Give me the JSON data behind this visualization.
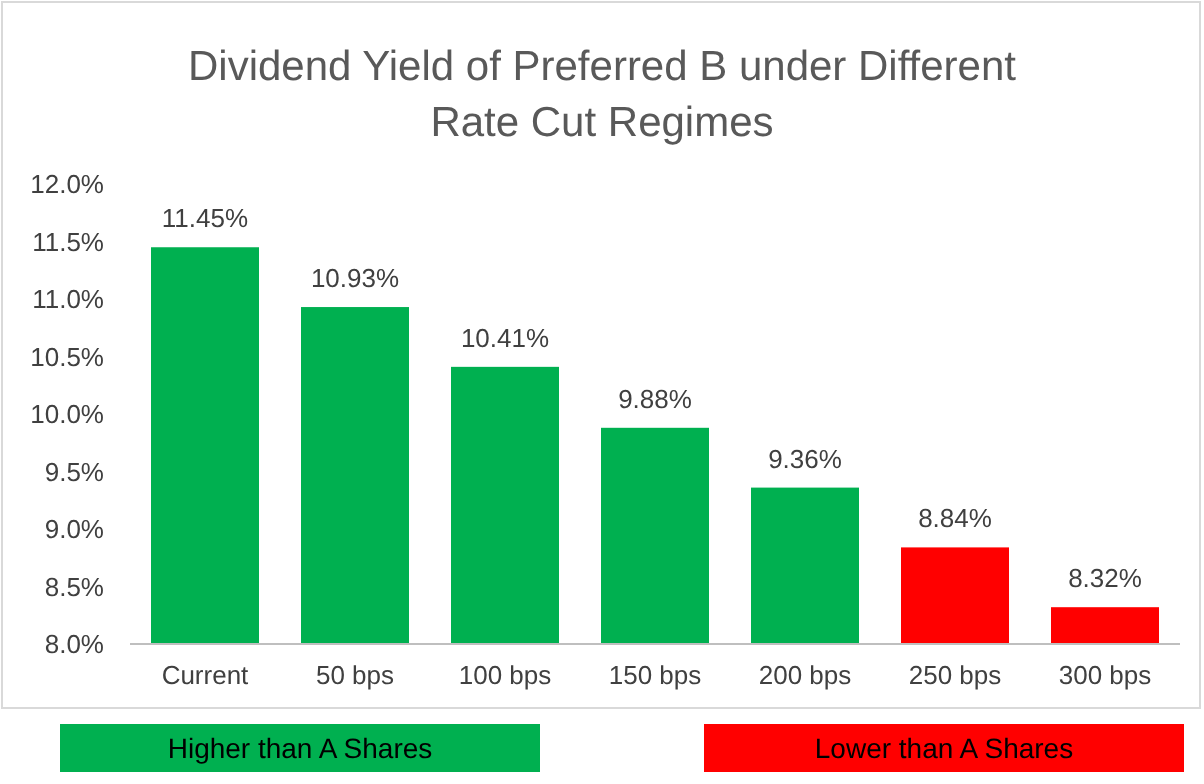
{
  "chart_data": {
    "type": "bar",
    "title": "Dividend Yield of Preferred B under Different Rate Cut Regimes",
    "categories": [
      "Current",
      "50 bps",
      "100 bps",
      "150 bps",
      "200 bps",
      "250 bps",
      "300 bps"
    ],
    "stacked": true,
    "series": [
      {
        "name": "Higher than A Shares",
        "color": "#00b050",
        "values": [
          11.45,
          10.93,
          10.41,
          9.88,
          9.36,
          null,
          null
        ],
        "value_labels": [
          "11.45%",
          "10.93%",
          "10.41%",
          "9.88%",
          "9.36%",
          null,
          null
        ]
      },
      {
        "name": "Lower than A Shares",
        "color": "#ff0000",
        "values": [
          null,
          null,
          null,
          null,
          null,
          8.84,
          8.32
        ],
        "value_labels": [
          null,
          null,
          null,
          null,
          null,
          "8.84%",
          "8.32%"
        ]
      }
    ],
    "ylim": [
      8,
      12
    ],
    "yticks": [
      {
        "value": 8,
        "label": "8.0%"
      },
      {
        "value": 8.5,
        "label": "8.5%"
      },
      {
        "value": 9,
        "label": "9.0%"
      },
      {
        "value": 9.5,
        "label": "9.5%"
      },
      {
        "value": 10,
        "label": "10.0%"
      },
      {
        "value": 10.5,
        "label": "10.5%"
      },
      {
        "value": 11,
        "label": "11.0%"
      },
      {
        "value": 11.5,
        "label": "11.5%"
      },
      {
        "value": 12,
        "label": "12.0%"
      }
    ],
    "grid": false,
    "legend": "bottom"
  }
}
